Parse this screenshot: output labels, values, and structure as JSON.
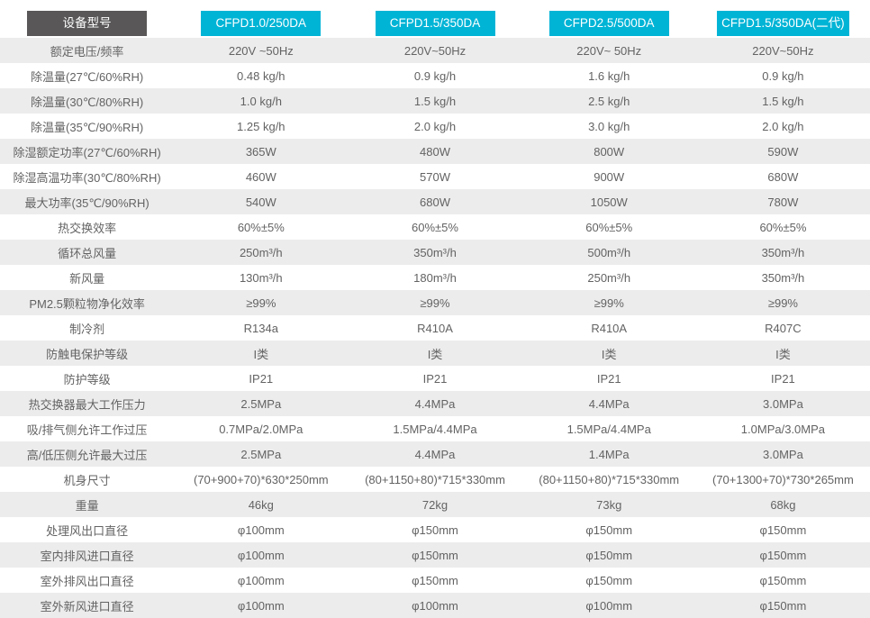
{
  "header": {
    "label": "设备型号",
    "models": [
      "CFPD1.0/250DA",
      "CFPD1.5/350DA",
      "CFPD2.5/500DA",
      "CFPD1.5/350DA(二代)"
    ]
  },
  "colors": {
    "accent_cyan": "#00b4d6",
    "header_dark": "#595757",
    "row_stripe": "#ececec",
    "text": "#636363"
  },
  "rows": [
    {
      "label": "额定电压/频率",
      "values": [
        "220V ~50Hz",
        "220V~50Hz",
        "220V~ 50Hz",
        "220V~50Hz"
      ]
    },
    {
      "label": "除温量(27℃/60%RH)",
      "values": [
        "0.48 kg/h",
        "0.9 kg/h",
        "1.6 kg/h",
        "0.9 kg/h"
      ]
    },
    {
      "label": "除温量(30℃/80%RH)",
      "values": [
        "1.0 kg/h",
        "1.5 kg/h",
        "2.5 kg/h",
        "1.5 kg/h"
      ]
    },
    {
      "label": "除温量(35℃/90%RH)",
      "values": [
        "1.25 kg/h",
        "2.0 kg/h",
        "3.0 kg/h",
        "2.0 kg/h"
      ]
    },
    {
      "label": "除湿额定功率(27℃/60%RH)",
      "values": [
        "365W",
        "480W",
        "800W",
        "590W"
      ]
    },
    {
      "label": "除湿高温功率(30℃/80%RH)",
      "values": [
        "460W",
        "570W",
        "900W",
        "680W"
      ]
    },
    {
      "label": "最大功率(35℃/90%RH)",
      "values": [
        "540W",
        "680W",
        "1050W",
        "780W"
      ]
    },
    {
      "label": "热交换效率",
      "values": [
        "60%±5%",
        "60%±5%",
        "60%±5%",
        "60%±5%"
      ]
    },
    {
      "label": "循环总风量",
      "values": [
        "250m³/h",
        "350m³/h",
        "500m³/h",
        "350m³/h"
      ]
    },
    {
      "label": "新风量",
      "values": [
        "130m³/h",
        "180m³/h",
        "250m³/h",
        "350m³/h"
      ]
    },
    {
      "label": "PM2.5颗粒物净化效率",
      "values": [
        "≥99%",
        "≥99%",
        "≥99%",
        "≥99%"
      ]
    },
    {
      "label": "制冷剂",
      "values": [
        "R134a",
        "R410A",
        "R410A",
        "R407C"
      ]
    },
    {
      "label": "防触电保护等级",
      "values": [
        "I类",
        "I类",
        "I类",
        "I类"
      ]
    },
    {
      "label": "防护等级",
      "values": [
        "IP21",
        "IP21",
        "IP21",
        "IP21"
      ]
    },
    {
      "label": "热交换器最大工作压力",
      "values": [
        "2.5MPa",
        "4.4MPa",
        "4.4MPa",
        "3.0MPa"
      ]
    },
    {
      "label": "吸/排气侧允许工作过压",
      "values": [
        "0.7MPa/2.0MPa",
        "1.5MPa/4.4MPa",
        "1.5MPa/4.4MPa",
        "1.0MPa/3.0MPa"
      ]
    },
    {
      "label": "高/低压侧允许最大过压",
      "values": [
        "2.5MPa",
        "4.4MPa",
        "1.4MPa",
        "3.0MPa"
      ]
    },
    {
      "label": "机身尺寸",
      "values": [
        "(70+900+70)*630*250mm",
        "(80+1150+80)*715*330mm",
        "(80+1150+80)*715*330mm",
        "(70+1300+70)*730*265mm"
      ]
    },
    {
      "label": "重量",
      "values": [
        "46kg",
        "72kg",
        "73kg",
        "68kg"
      ]
    },
    {
      "label": "处理风出口直径",
      "values": [
        "φ100mm",
        "φ150mm",
        "φ150mm",
        "φ150mm"
      ]
    },
    {
      "label": "室内排风进口直径",
      "values": [
        "φ100mm",
        "φ150mm",
        "φ150mm",
        "φ150mm"
      ]
    },
    {
      "label": "室外排风出口直径",
      "values": [
        "φ100mm",
        "φ150mm",
        "φ150mm",
        "φ150mm"
      ]
    },
    {
      "label": "室外新风进口直径",
      "values": [
        "φ100mm",
        "φ100mm",
        "φ100mm",
        "φ150mm"
      ]
    }
  ]
}
